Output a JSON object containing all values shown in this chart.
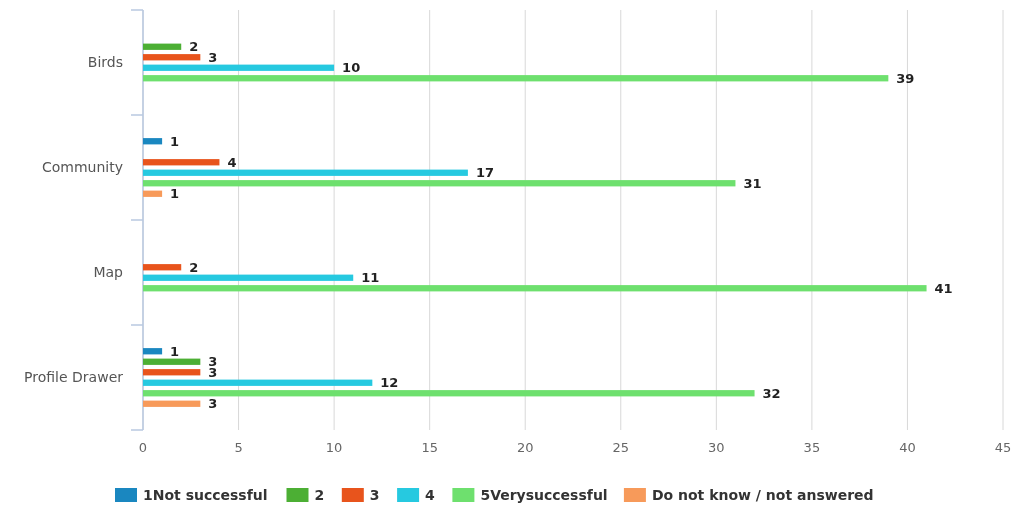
{
  "chart_data": {
    "type": "bar",
    "orientation": "horizontal",
    "categories": [
      "Birds",
      "Community",
      "Map",
      "Profile Drawer"
    ],
    "series": [
      {
        "name": "1Not successful",
        "color": "#1a87c0",
        "values": [
          null,
          1,
          null,
          1
        ]
      },
      {
        "name": "2",
        "color": "#4caf34",
        "values": [
          2,
          null,
          null,
          3
        ]
      },
      {
        "name": "3",
        "color": "#e8541c",
        "values": [
          3,
          4,
          2,
          3
        ]
      },
      {
        "name": "4",
        "color": "#26c9e0",
        "values": [
          10,
          17,
          11,
          12
        ]
      },
      {
        "name": "5Verysuccessful",
        "color": "#6ee06e",
        "values": [
          39,
          31,
          41,
          32
        ]
      },
      {
        "name": "Do not know / not answered",
        "color": "#f79a5a",
        "values": [
          null,
          1,
          null,
          3
        ]
      }
    ],
    "xlim": [
      0,
      45
    ],
    "xticks": [
      0,
      5,
      10,
      15,
      20,
      25,
      30,
      35,
      40,
      45
    ],
    "grid": "x",
    "legend": "bottom",
    "data_labels": true
  }
}
